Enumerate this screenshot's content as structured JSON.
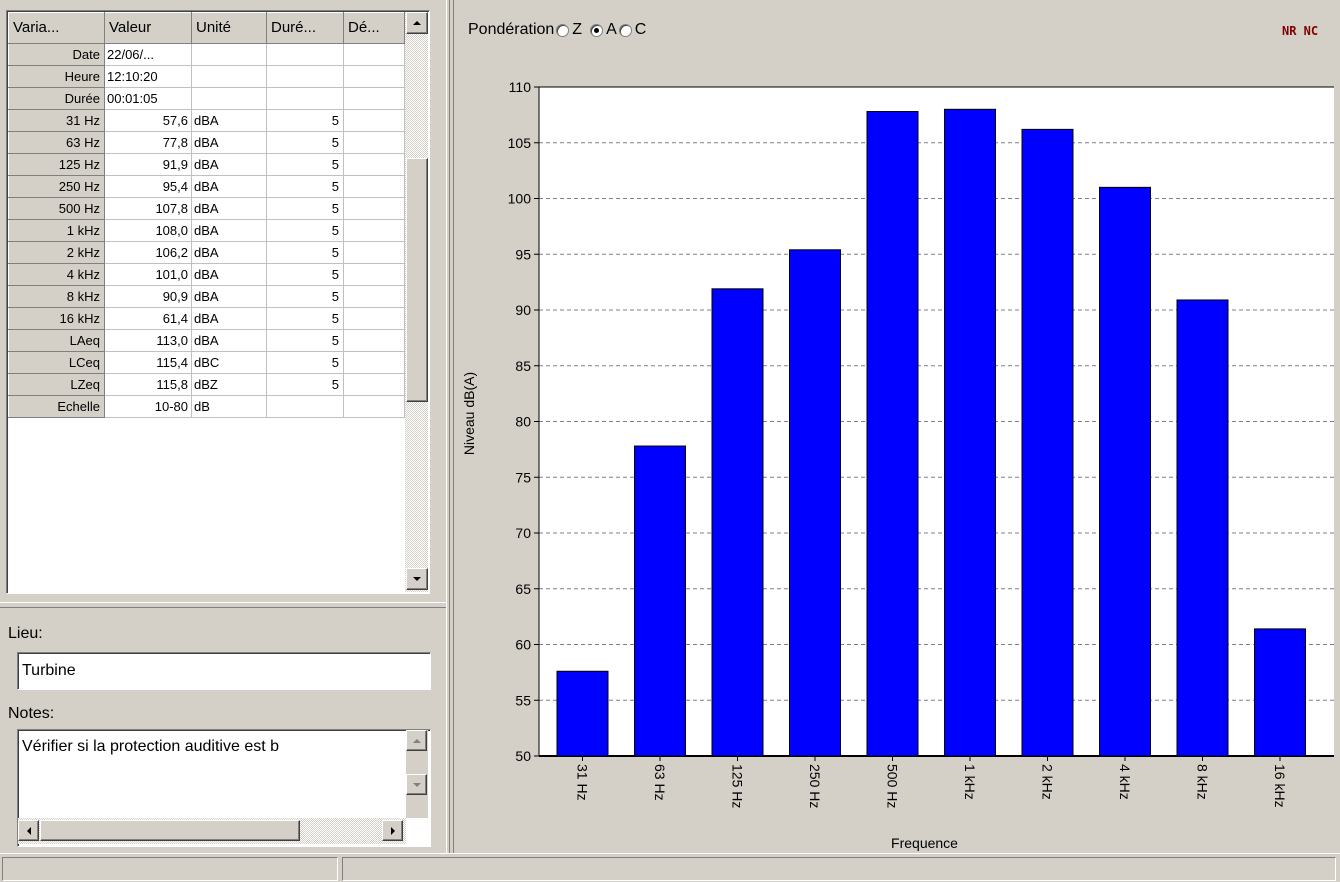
{
  "table": {
    "headers": [
      "Varia...",
      "Valeur",
      "Unité",
      "Duré...",
      "Dé..."
    ],
    "rows": [
      {
        "variable": "Date",
        "valeur": "22/06/...",
        "unite": "",
        "duree": "",
        "de": ""
      },
      {
        "variable": "Heure",
        "valeur": "12:10:20",
        "unite": "",
        "duree": "",
        "de": ""
      },
      {
        "variable": "Durée",
        "valeur": "00:01:05",
        "unite": "",
        "duree": "",
        "de": ""
      },
      {
        "variable": "31 Hz",
        "valeur": "57,6",
        "unite": "dBA",
        "duree": "5",
        "de": ""
      },
      {
        "variable": "63 Hz",
        "valeur": "77,8",
        "unite": "dBA",
        "duree": "5",
        "de": ""
      },
      {
        "variable": "125 Hz",
        "valeur": "91,9",
        "unite": "dBA",
        "duree": "5",
        "de": ""
      },
      {
        "variable": "250 Hz",
        "valeur": "95,4",
        "unite": "dBA",
        "duree": "5",
        "de": ""
      },
      {
        "variable": "500 Hz",
        "valeur": "107,8",
        "unite": "dBA",
        "duree": "5",
        "de": ""
      },
      {
        "variable": "1 kHz",
        "valeur": "108,0",
        "unite": "dBA",
        "duree": "5",
        "de": ""
      },
      {
        "variable": "2 kHz",
        "valeur": "106,2",
        "unite": "dBA",
        "duree": "5",
        "de": ""
      },
      {
        "variable": "4 kHz",
        "valeur": "101,0",
        "unite": "dBA",
        "duree": "5",
        "de": ""
      },
      {
        "variable": "8 kHz",
        "valeur": "90,9",
        "unite": "dBA",
        "duree": "5",
        "de": ""
      },
      {
        "variable": "16 kHz",
        "valeur": "61,4",
        "unite": "dBA",
        "duree": "5",
        "de": ""
      },
      {
        "variable": "LAeq",
        "valeur": "113,0",
        "unite": "dBA",
        "duree": "5",
        "de": ""
      },
      {
        "variable": "LCeq",
        "valeur": "115,4",
        "unite": "dBC",
        "duree": "5",
        "de": ""
      },
      {
        "variable": "LZeq",
        "valeur": "115,8",
        "unite": "dBZ",
        "duree": "5",
        "de": ""
      },
      {
        "variable": "Echelle",
        "valeur": "10-80",
        "unite": "dB",
        "duree": "",
        "de": ""
      }
    ]
  },
  "form": {
    "lieu_label": "Lieu:",
    "lieu_value": "Turbine",
    "notes_label": "Notes:",
    "notes_value": "Vérifier si la protection auditive est b"
  },
  "weighting": {
    "label": "Pondération",
    "options": [
      "Z",
      "A",
      "C"
    ],
    "selected": "A"
  },
  "nr_label": "NR  NC",
  "icons": {
    "scroll_up": "scroll-up-arrow-icon",
    "scroll_down": "scroll-down-arrow-icon",
    "scroll_left": "scroll-left-arrow-icon",
    "scroll_right": "scroll-right-arrow-icon"
  },
  "colors": {
    "bar_fill": "#0000ff",
    "nr_label": "#800000"
  },
  "chart_data": {
    "type": "bar",
    "categories": [
      "31 Hz",
      "63 Hz",
      "125 Hz",
      "250 Hz",
      "500 Hz",
      "1 kHz",
      "2 kHz",
      "4 kHz",
      "8 kHz",
      "16 kHz"
    ],
    "values": [
      57.6,
      77.8,
      91.9,
      95.4,
      107.8,
      108.0,
      106.2,
      101.0,
      90.9,
      61.4
    ],
    "xlabel": "Frequence",
    "ylabel": "Niveau dB(A)",
    "ylim": [
      50,
      110
    ],
    "yticks": [
      50,
      55,
      60,
      65,
      70,
      75,
      80,
      85,
      90,
      95,
      100,
      105,
      110
    ],
    "grid": true
  }
}
